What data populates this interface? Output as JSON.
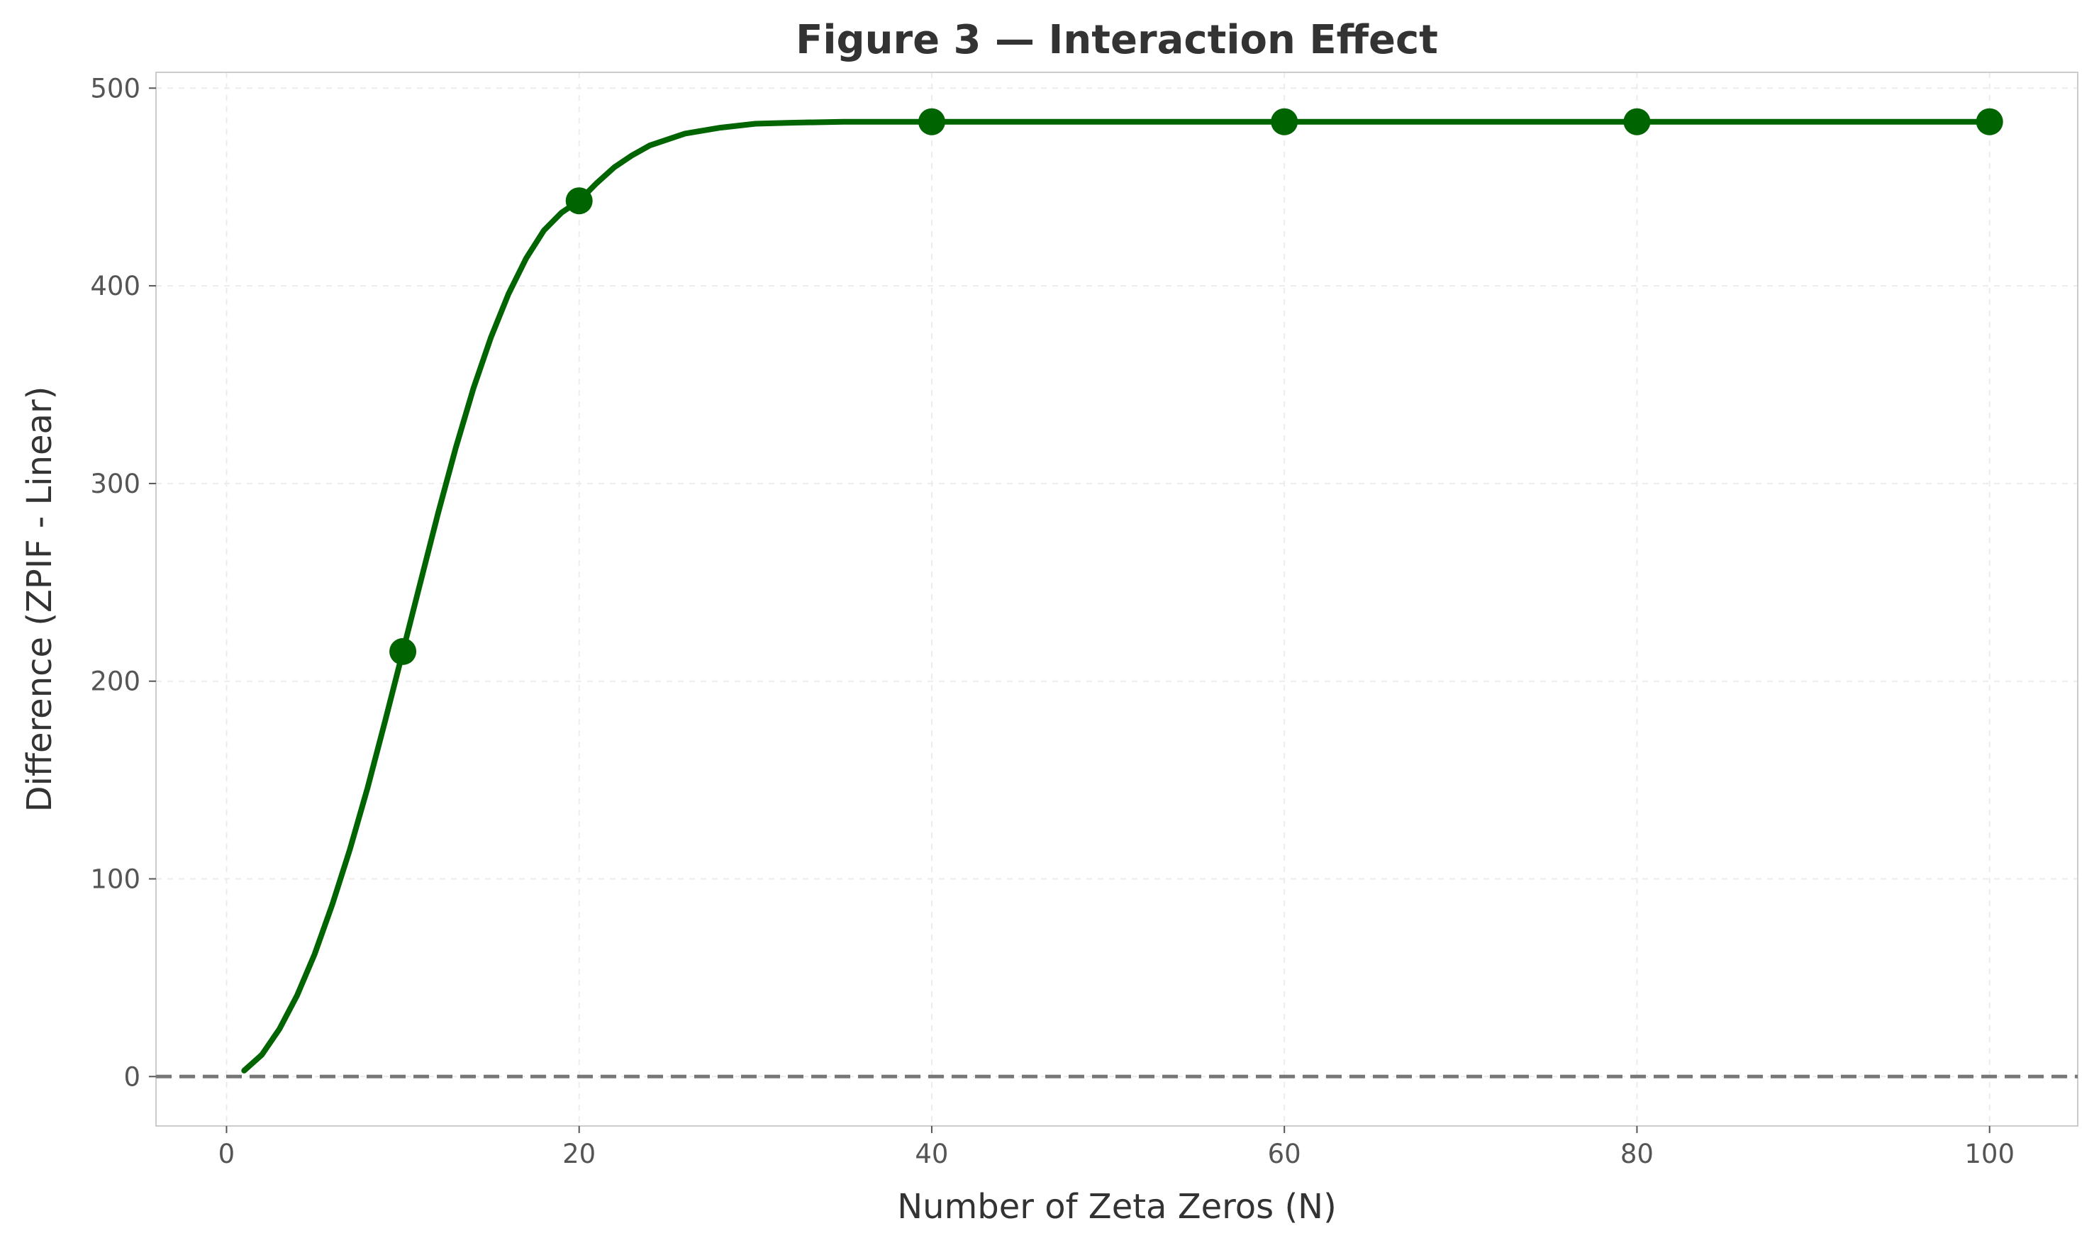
{
  "chart_data": {
    "type": "line",
    "title": "Figure 3 — Interaction Effect",
    "xlabel": "Number of Zeta Zeros (N)",
    "ylabel": "Difference (ZPIF - Linear)",
    "xlim": [
      -4,
      105
    ],
    "ylim": [
      -25,
      508
    ],
    "xticks": [
      0,
      20,
      40,
      60,
      80,
      100
    ],
    "yticks": [
      0,
      100,
      200,
      300,
      400,
      500
    ],
    "grid": true,
    "reference_line": {
      "y": 0,
      "style": "dashed",
      "color": "#777777"
    },
    "series": [
      {
        "color": "#006400",
        "curve": {
          "x": [
            1,
            2,
            3,
            4,
            5,
            6,
            7,
            8,
            9,
            10,
            11,
            12,
            13,
            14,
            15,
            16,
            17,
            18,
            19,
            20,
            21,
            22,
            23,
            24,
            25,
            26,
            28,
            30,
            32,
            35,
            40,
            50,
            60,
            70,
            80,
            90,
            100
          ],
          "y": [
            3,
            11,
            24,
            41,
            62,
            87,
            115,
            146,
            180,
            215,
            250,
            285,
            318,
            348,
            374,
            396,
            414,
            428,
            437,
            443,
            452,
            460,
            466,
            471,
            474,
            477,
            480,
            482,
            482.5,
            483,
            483,
            483,
            483,
            483,
            483,
            483,
            483
          ]
        },
        "markers": {
          "x": [
            10,
            20,
            40,
            60,
            80,
            100
          ],
          "y": [
            215,
            443,
            483,
            483,
            483,
            483
          ]
        }
      }
    ]
  }
}
